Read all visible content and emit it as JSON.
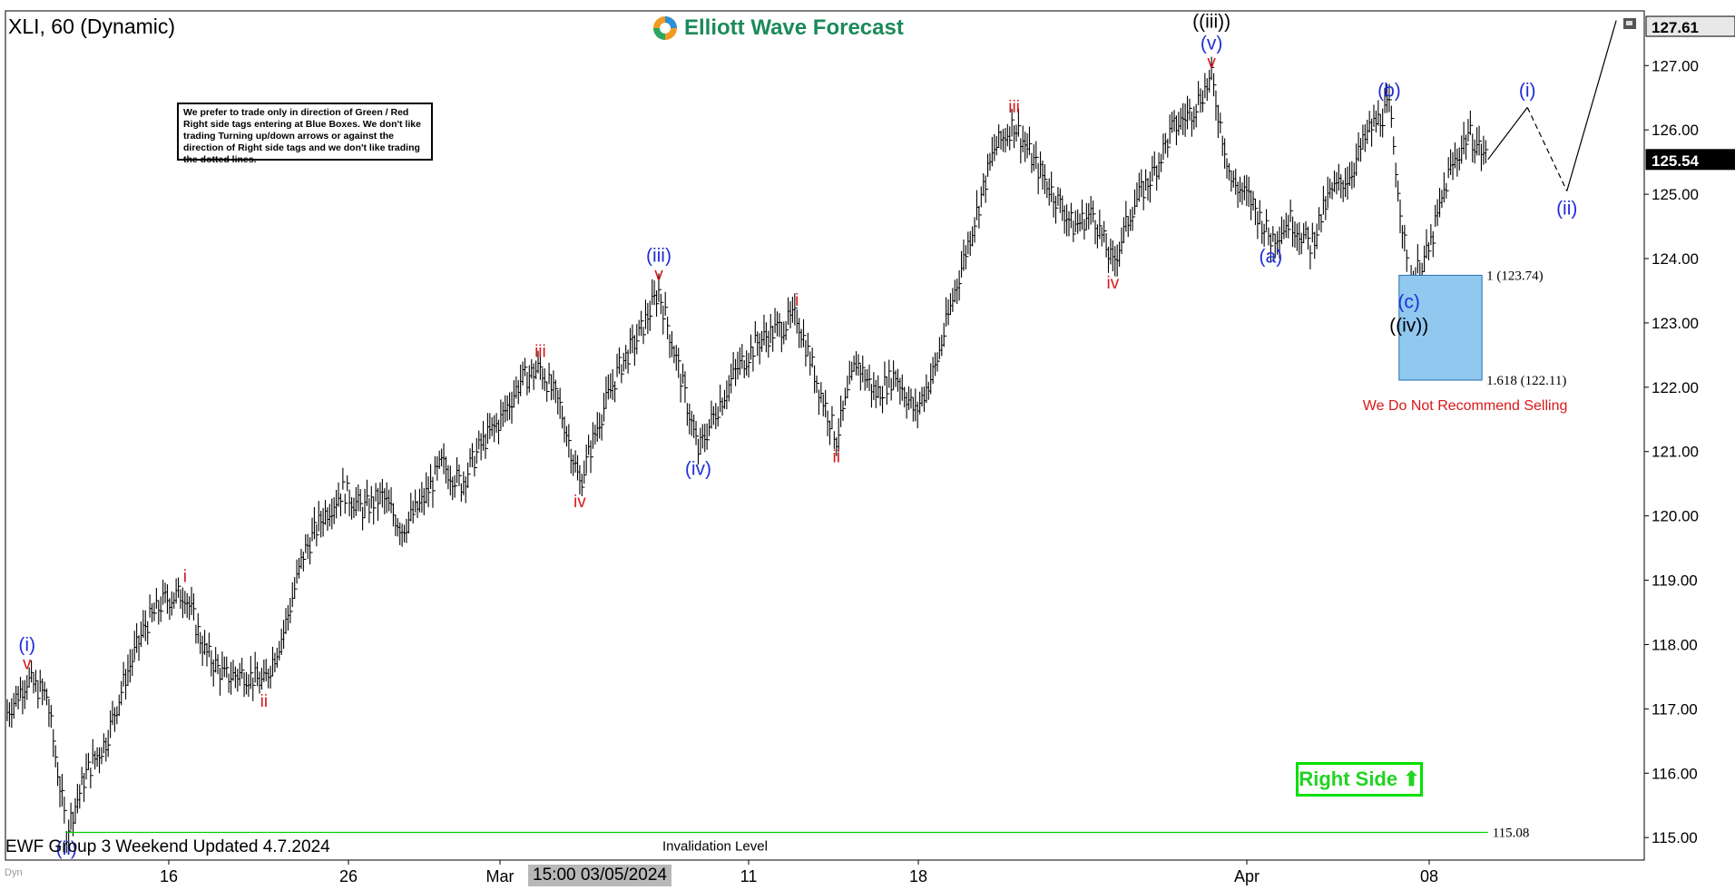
{
  "header": {
    "title": "XLI, 60 (Dynamic)",
    "brand": "Elliott Wave Forecast"
  },
  "note_box": {
    "text": "We prefer to trade only in direction of Green / Red Right side tags entering at Blue Boxes. We don't like trading Turning up/down arrows or against the direction of Right side tags and we don't like trading the dotted lines."
  },
  "footer": {
    "update_text": "EWF Group 3 Weekend Updated 4.7.2024",
    "cursor_date": "15:00 03/05/2024",
    "corner_label": "Dyn"
  },
  "right_side_tag": {
    "text": "Right Side",
    "color": "#00e000"
  },
  "colors": {
    "wave_blue": "#1f2fd6",
    "wave_red": "#d81818",
    "blue_box": "#90c8f0",
    "invalidation_line": "#00d000",
    "price_tag_bg": "#000000"
  },
  "chart_data": {
    "type": "line",
    "symbol": "XLI",
    "timeframe": "60",
    "ylim": [
      114.65,
      127.85
    ],
    "y_ticks": [
      115.0,
      116.0,
      117.0,
      118.0,
      119.0,
      120.0,
      121.0,
      122.0,
      123.0,
      124.0,
      125.0,
      126.0,
      127.0
    ],
    "x_tick_labels": [
      "16",
      "26",
      "Mar",
      "11",
      "18",
      "Apr",
      "08"
    ],
    "current_price": "125.54",
    "high_price_label": "127.61",
    "series": [
      {
        "points": [
          [
            0,
            116.95
          ],
          [
            1,
            117.45
          ],
          [
            2,
            117.2
          ],
          [
            3,
            115.1
          ],
          [
            4,
            116.0
          ],
          [
            5,
            116.5
          ],
          [
            6,
            117.5
          ],
          [
            7,
            118.3
          ],
          [
            8,
            118.7
          ],
          [
            9,
            118.8
          ],
          [
            10,
            117.9
          ],
          [
            11,
            117.5
          ],
          [
            12,
            117.55
          ],
          [
            13,
            117.4
          ],
          [
            14,
            118.2
          ],
          [
            15,
            119.4
          ],
          [
            16,
            120.0
          ],
          [
            17,
            120.4
          ],
          [
            18,
            120.1
          ],
          [
            19,
            120.3
          ],
          [
            20,
            119.8
          ],
          [
            21,
            120.2
          ],
          [
            22,
            120.8
          ],
          [
            23,
            120.5
          ],
          [
            24,
            121.1
          ],
          [
            25,
            121.5
          ],
          [
            26,
            122.1
          ],
          [
            27,
            122.3
          ],
          [
            28,
            121.7
          ],
          [
            29,
            120.5
          ],
          [
            30,
            121.5
          ],
          [
            31,
            122.3
          ],
          [
            32,
            122.8
          ],
          [
            33,
            123.5
          ],
          [
            34,
            122.3
          ],
          [
            35,
            121.0
          ],
          [
            36,
            121.7
          ],
          [
            37,
            122.3
          ],
          [
            38,
            122.7
          ],
          [
            39,
            122.9
          ],
          [
            40,
            123.1
          ],
          [
            41,
            122.1
          ],
          [
            42,
            121.2
          ],
          [
            43,
            122.4
          ],
          [
            44,
            121.9
          ],
          [
            45,
            122.2
          ],
          [
            46,
            121.6
          ],
          [
            47,
            122.3
          ],
          [
            48,
            123.5
          ],
          [
            49,
            124.6
          ],
          [
            50,
            125.7
          ],
          [
            51,
            126.1
          ],
          [
            52,
            125.5
          ],
          [
            53,
            125.0
          ],
          [
            54,
            124.5
          ],
          [
            55,
            124.7
          ],
          [
            56,
            123.9
          ],
          [
            57,
            124.8
          ],
          [
            58,
            125.3
          ],
          [
            59,
            126.0
          ],
          [
            60,
            126.3
          ],
          [
            61,
            126.8
          ],
          [
            62,
            125.2
          ],
          [
            63,
            124.9
          ],
          [
            64,
            124.3
          ],
          [
            65,
            124.6
          ],
          [
            66,
            124.2
          ],
          [
            67,
            125.0
          ],
          [
            68,
            125.3
          ],
          [
            69,
            126.0
          ],
          [
            70,
            126.35
          ],
          [
            71,
            123.6
          ],
          [
            72,
            124.1
          ],
          [
            73,
            125.3
          ],
          [
            74,
            125.95
          ],
          [
            75,
            125.54
          ]
        ]
      }
    ],
    "projection": [
      [
        75,
        125.54
      ],
      [
        77,
        126.35
      ],
      [
        79,
        125.05
      ],
      [
        81.5,
        127.7
      ]
    ],
    "wave_labels": [
      {
        "text": "(i)",
        "x": 1,
        "y": 117.45,
        "color": "blue",
        "pos": "above2"
      },
      {
        "text": "v",
        "x": 1,
        "y": 117.45,
        "color": "red",
        "pos": "above"
      },
      {
        "text": "(ii)",
        "x": 3,
        "y": 115.1,
        "color": "blue",
        "pos": "below"
      },
      {
        "text": "i",
        "x": 9,
        "y": 118.8,
        "color": "red",
        "pos": "above"
      },
      {
        "text": "ii",
        "x": 13,
        "y": 117.4,
        "color": "red",
        "pos": "below"
      },
      {
        "text": "iii",
        "x": 27,
        "y": 122.3,
        "color": "red",
        "pos": "above"
      },
      {
        "text": "iv",
        "x": 29,
        "y": 120.5,
        "color": "red",
        "pos": "below"
      },
      {
        "text": "(iii)",
        "x": 33,
        "y": 123.5,
        "color": "blue",
        "pos": "above2"
      },
      {
        "text": "v",
        "x": 33,
        "y": 123.5,
        "color": "red",
        "pos": "above"
      },
      {
        "text": "(iv)",
        "x": 35,
        "y": 121.0,
        "color": "blue",
        "pos": "below"
      },
      {
        "text": "i",
        "x": 40,
        "y": 123.1,
        "color": "red",
        "pos": "above"
      },
      {
        "text": "ii",
        "x": 42,
        "y": 121.2,
        "color": "red",
        "pos": "below"
      },
      {
        "text": "iii",
        "x": 51,
        "y": 126.1,
        "color": "red",
        "pos": "above"
      },
      {
        "text": "iv",
        "x": 56,
        "y": 123.9,
        "color": "red",
        "pos": "below"
      },
      {
        "text": "((iii))",
        "x": 61,
        "y": 126.8,
        "color": "black",
        "pos": "above3"
      },
      {
        "text": "(v)",
        "x": 61,
        "y": 126.8,
        "color": "blue",
        "pos": "above2"
      },
      {
        "text": "v",
        "x": 61,
        "y": 126.8,
        "color": "red",
        "pos": "above"
      },
      {
        "text": "(a)",
        "x": 64,
        "y": 124.3,
        "color": "blue",
        "pos": "below"
      },
      {
        "text": "(b)",
        "x": 70,
        "y": 126.35,
        "color": "blue",
        "pos": "above"
      },
      {
        "text": "(c)",
        "x": 71,
        "y": 123.6,
        "color": "blue",
        "pos": "below"
      },
      {
        "text": "((iv))",
        "x": 71,
        "y": 123.6,
        "color": "black",
        "pos": "below2"
      },
      {
        "text": "(i)",
        "x": 77,
        "y": 126.35,
        "color": "blue",
        "pos": "above"
      },
      {
        "text": "(ii)",
        "x": 79,
        "y": 125.05,
        "color": "blue",
        "pos": "below"
      }
    ],
    "blue_box": {
      "x_from": 70.5,
      "x_to": 74.7,
      "y_top": 123.74,
      "y_bottom": 122.11
    },
    "blue_box_labels": [
      "1 (123.74)",
      "1.618 (122.11)"
    ],
    "warning_text": "We Do Not Recommend Selling",
    "invalidation": {
      "price": 115.08,
      "label": "115.08",
      "text": "Invalidation Level",
      "x_from": 3,
      "x_to": 75
    }
  }
}
